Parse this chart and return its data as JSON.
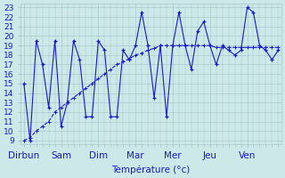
{
  "xlabel": "Température (°c)",
  "bg_color": "#cce8e8",
  "line_color": "#1a1acc",
  "ylim": [
    9,
    23
  ],
  "yticks": [
    9,
    10,
    11,
    12,
    13,
    14,
    15,
    16,
    17,
    18,
    19,
    20,
    21,
    22,
    23
  ],
  "day_labels": [
    "Dirbun",
    "Sam",
    "Dim",
    "Mar",
    "Mer",
    "Jeu",
    "Ven"
  ],
  "day_positions": [
    0,
    6,
    12,
    18,
    24,
    30,
    36
  ],
  "grid_color": "#a8caca",
  "label_fontsize": 7.5,
  "tick_fontsize": 6.5,
  "n_points": 42,
  "y_jagged": [
    15,
    9,
    19.5,
    17,
    12.5,
    19.5,
    10.5,
    13,
    19.5,
    17.5,
    11.5,
    11.5,
    19.5,
    18.5,
    11.5,
    11.5,
    18.5,
    17.5,
    19,
    22.5,
    19,
    13.5,
    19,
    11.5,
    19,
    22.5,
    19,
    16.5,
    20.5,
    21.5,
    19,
    17,
    19,
    18.5,
    18,
    18.5,
    23,
    22.5,
    19,
    18.5,
    17.5,
    18.5
  ],
  "y_trend": [
    9,
    9.3,
    10.0,
    10.5,
    11.0,
    12.0,
    12.5,
    13.0,
    13.5,
    14.0,
    14.5,
    15.0,
    15.5,
    16.0,
    16.5,
    17.0,
    17.3,
    17.6,
    18.0,
    18.2,
    18.5,
    18.7,
    19.0,
    19.0,
    19.0,
    19.0,
    19.0,
    19.0,
    19.0,
    19.0,
    19.0,
    18.8,
    18.8,
    18.8,
    18.8,
    18.8,
    18.8,
    18.8,
    18.8,
    18.8,
    18.8,
    18.8
  ]
}
